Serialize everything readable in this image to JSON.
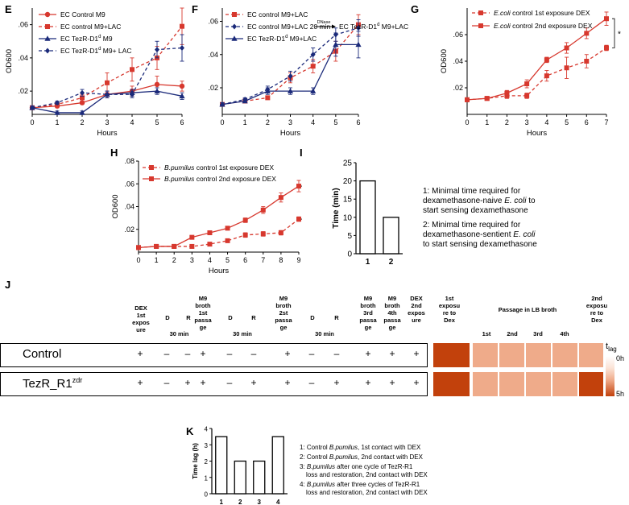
{
  "colors": {
    "red": "#d7382e",
    "navy": "#1b2a7a",
    "heat_dark": "#c2410c",
    "heat_light": "#efab8a"
  },
  "panel_letters": {
    "E": "E",
    "F": "F",
    "G": "G",
    "H": "H",
    "I": "I",
    "J": "J",
    "K": "K"
  },
  "chart_data": [
    {
      "id": "E",
      "type": "line",
      "title": "",
      "xlabel": "Hours",
      "ylabel": "OD600",
      "xlim": [
        0,
        6
      ],
      "ylim": [
        0.006,
        0.07
      ],
      "yticks": [
        0.02,
        0.04,
        0.06
      ],
      "xticks": [
        0,
        1,
        2,
        3,
        4,
        5,
        6
      ],
      "x": [
        0,
        1,
        2,
        3,
        4,
        5,
        6
      ],
      "series": [
        {
          "name": "EC Control M9",
          "color": "red",
          "dashed": false,
          "marker": "circle",
          "values": [
            0.01,
            0.011,
            0.013,
            0.018,
            0.02,
            0.024,
            0.023
          ],
          "err": [
            0.001,
            0.001,
            0.001,
            0.002,
            0.003,
            0.005,
            0.003
          ]
        },
        {
          "name": "EC control M9+LAC",
          "color": "red",
          "dashed": true,
          "marker": "square",
          "values": [
            0.01,
            0.012,
            0.016,
            0.025,
            0.033,
            0.04,
            0.059
          ],
          "err": [
            0.001,
            0.001,
            0.002,
            0.006,
            0.007,
            0.007,
            0.011
          ]
        },
        {
          "name": "EC TezR-D1",
          "sup": "d",
          "name_after": " M9",
          "color": "navy",
          "dashed": false,
          "marker": "triangle",
          "values": [
            0.01,
            0.007,
            0.007,
            0.018,
            0.019,
            0.02,
            0.017
          ],
          "err": [
            0.001,
            0.001,
            0.001,
            0.002,
            0.002,
            0.002,
            0.002
          ]
        },
        {
          "name": "EC TezR-D1",
          "sup": "d",
          "name_after": " M9+ LAC",
          "color": "navy",
          "dashed": true,
          "marker": "diamond",
          "values": [
            0.01,
            0.013,
            0.019,
            0.018,
            0.018,
            0.045,
            0.046
          ],
          "err": [
            0.001,
            0.001,
            0.002,
            0.002,
            0.002,
            0.005,
            0.008
          ]
        }
      ]
    },
    {
      "id": "F",
      "type": "line",
      "title": "",
      "xlabel": "Hours",
      "ylabel": "",
      "xlim": [
        0,
        6
      ],
      "ylim": [
        0.004,
        0.068
      ],
      "yticks": [
        0.02,
        0.04,
        0.06
      ],
      "xticks": [
        0,
        1,
        2,
        3,
        4,
        5,
        6
      ],
      "x": [
        0,
        1,
        2,
        3,
        4,
        5,
        6
      ],
      "annotation": {
        "arrow_label": "DNase",
        "target": "EC TezR-D1",
        "sup": "d",
        "target_after": " M9+LAC"
      },
      "series": [
        {
          "name": "EC control M9+LAC",
          "color": "red",
          "dashed": true,
          "marker": "square",
          "values": [
            0.01,
            0.012,
            0.014,
            0.026,
            0.033,
            0.042,
            0.058
          ],
          "err": [
            0.001,
            0.001,
            0.001,
            0.003,
            0.004,
            0.006,
            0.006
          ]
        },
        {
          "name": "EC control M9+LAC 20 min",
          "color": "navy",
          "dashed": true,
          "marker": "diamond",
          "values": [
            0.01,
            0.013,
            0.019,
            0.027,
            0.04,
            0.052,
            0.056
          ],
          "err": [
            0.001,
            0.001,
            0.002,
            0.003,
            0.004,
            0.004,
            0.005
          ]
        },
        {
          "name": "EC TezR-D1",
          "sup": "d",
          "name_after": " M9+LAC",
          "color": "navy",
          "dashed": false,
          "marker": "triangle",
          "values": [
            0.01,
            0.012,
            0.018,
            0.018,
            0.018,
            0.046,
            0.046
          ],
          "err": [
            0.001,
            0.001,
            0.002,
            0.002,
            0.002,
            0.007,
            0.008
          ]
        }
      ]
    },
    {
      "id": "G",
      "type": "line",
      "title": "",
      "xlabel": "Hours",
      "ylabel": "OD600",
      "xlim": [
        0,
        7
      ],
      "ylim": [
        0,
        0.08
      ],
      "yticks": [
        0.02,
        0.04,
        0.06
      ],
      "xticks": [
        0,
        1,
        2,
        3,
        4,
        5,
        6,
        7
      ],
      "x": [
        0,
        1,
        2,
        3,
        4,
        5,
        6,
        7
      ],
      "significance": "*",
      "series": [
        {
          "name": "E.coli",
          "name_italic": true,
          "name_after": " control 1st exposure DEX",
          "color": "red",
          "dashed": true,
          "marker": "square",
          "values": [
            0.011,
            0.012,
            0.014,
            0.014,
            0.029,
            0.035,
            0.04,
            0.05
          ],
          "err": [
            0.001,
            0.001,
            0.002,
            0.002,
            0.004,
            0.008,
            0.005,
            0.002
          ]
        },
        {
          "name": "E.coli",
          "name_italic": true,
          "name_after": " control 2nd exposure DEX",
          "color": "red",
          "dashed": false,
          "marker": "square",
          "values": [
            0.011,
            0.012,
            0.016,
            0.023,
            0.041,
            0.05,
            0.061,
            0.072
          ],
          "err": [
            0.001,
            0.001,
            0.002,
            0.003,
            0.002,
            0.004,
            0.004,
            0.005
          ]
        }
      ]
    },
    {
      "id": "H",
      "type": "line",
      "title": "",
      "xlabel": "Hours",
      "ylabel": "OD600",
      "xlim": [
        0,
        9
      ],
      "ylim": [
        0,
        0.08
      ],
      "yticks": [
        0.02,
        0.04,
        0.06,
        0.08
      ],
      "xticks": [
        0,
        1,
        2,
        3,
        4,
        5,
        6,
        7,
        8,
        9
      ],
      "x": [
        0,
        1,
        2,
        3,
        4,
        5,
        6,
        7,
        8,
        9
      ],
      "significance": "***",
      "series": [
        {
          "name": "B.pumilus",
          "name_italic": true,
          "name_after": " control 1st exposure DEX",
          "color": "red",
          "dashed": true,
          "marker": "square",
          "values": [
            0.004,
            0.005,
            0.005,
            0.005,
            0.007,
            0.01,
            0.015,
            0.016,
            0.017,
            0.029
          ],
          "err": [
            0.001,
            0.001,
            0.001,
            0.001,
            0.001,
            0.001,
            0.002,
            0.002,
            0.002,
            0.002
          ]
        },
        {
          "name": "B.pumilus",
          "name_italic": true,
          "name_after": " control 2nd exposure DEX",
          "color": "red",
          "dashed": false,
          "marker": "square",
          "values": [
            0.004,
            0.005,
            0.005,
            0.013,
            0.017,
            0.021,
            0.028,
            0.037,
            0.048,
            0.058
          ],
          "err": [
            0.001,
            0.001,
            0.001,
            0.001,
            0.001,
            0.001,
            0.002,
            0.003,
            0.004,
            0.005
          ]
        }
      ]
    },
    {
      "id": "I",
      "type": "bar",
      "title": "",
      "xlabel": "",
      "ylabel": "Time (min)",
      "categories": [
        "1",
        "2"
      ],
      "values": [
        20,
        10
      ],
      "ylim": [
        0,
        25
      ],
      "yticks": [
        0,
        5,
        10,
        15,
        20,
        25
      ]
    },
    {
      "id": "K",
      "type": "bar",
      "title": "",
      "xlabel": "",
      "ylabel": "Time lag (h)",
      "categories": [
        "1",
        "2",
        "3",
        "4"
      ],
      "values": [
        3.5,
        2,
        2,
        3.5
      ],
      "ylim": [
        0,
        4
      ],
      "yticks": [
        0,
        1,
        2,
        3,
        4
      ]
    }
  ],
  "panel_i_notes": {
    "note1": "1: Minimal time required for dexamethasone-naive E. coli to start sensing dexamethasone",
    "note1_lines": [
      "1: Minimal time required for",
      "dexamethasone-naive ",
      "E. coli",
      " to",
      "start sensing dexamethasone"
    ],
    "note2_lines": [
      "2: Minimal time required for",
      "dexamethasone-sentient ",
      "E. coli",
      "to start sensing dexamethasone"
    ]
  },
  "panel_k_notes": {
    "line1": "1: Control ",
    "line1_it": "B.pumilus",
    "line1_end": ", 1st contact with DEX",
    "line2": "2: Control ",
    "line2_it": "B.pumilus",
    "line2_end": ", 2nd contact with DEX",
    "line3a": "3: ",
    "line3_it": "B.pumilus",
    "line3_end": " after one cycle of  TezR-R1",
    "line3b": "loss and restoration, 2nd contact with DEX",
    "line4a": "4: ",
    "line4_it": "B.pumilus",
    "line4_end": " after three cycles of TezR-R1",
    "line4b": "loss and restoration, 2nd contact with DEX"
  },
  "table_j": {
    "headers": {
      "dex1": [
        "DEX",
        "1st",
        "expos",
        "ure"
      ],
      "d": "D",
      "r": "R",
      "min30": "30 min",
      "m9_1": [
        "M9",
        "broth",
        "1st",
        "passa",
        "ge"
      ],
      "m9_2": [
        "M9",
        "broth",
        "2st",
        "passa",
        "ge"
      ],
      "m9_3": [
        "M9",
        "broth",
        "3rd",
        "passa",
        "ge"
      ],
      "m9_4": [
        "M9",
        "broth",
        "4th",
        "passa",
        "ge"
      ],
      "dex2": [
        "DEX",
        "2nd",
        "expos",
        "ure"
      ]
    },
    "rows": [
      {
        "label": "Control",
        "label_sup": "",
        "cells": [
          "+",
          "–",
          "–",
          "+",
          "–",
          "–",
          "+",
          "–",
          "–",
          "+",
          "+",
          "+"
        ]
      },
      {
        "label": "TezR_R1",
        "label_sup": "zdr",
        "cells": [
          "+",
          "–",
          "+",
          "+",
          "–",
          "+",
          "+",
          "–",
          "+",
          "+",
          "+",
          "+"
        ]
      }
    ],
    "heatmap": {
      "col_headers": [
        "1st exposu re to Dex",
        "Passage in LB broth",
        "2nd exposu re to Dex"
      ],
      "col1": [
        "1st",
        "exposu",
        "re to",
        "Dex"
      ],
      "passage_title": "Passage in LB broth",
      "passages": [
        "1st",
        "2nd",
        "3rd",
        "4th"
      ],
      "col6": [
        "2nd",
        "exposu",
        "re to",
        "Dex"
      ],
      "rows": [
        {
          "name": "Control",
          "levels": [
            "dark",
            "light",
            "light",
            "light",
            "light",
            "light"
          ]
        },
        {
          "name": "TezR_R1zdr",
          "levels": [
            "dark",
            "light",
            "light",
            "light",
            "light",
            "dark"
          ]
        }
      ],
      "scale_title": "t",
      "scale_sub": "lag",
      "scale_min": "0h",
      "scale_max": "5h"
    }
  }
}
